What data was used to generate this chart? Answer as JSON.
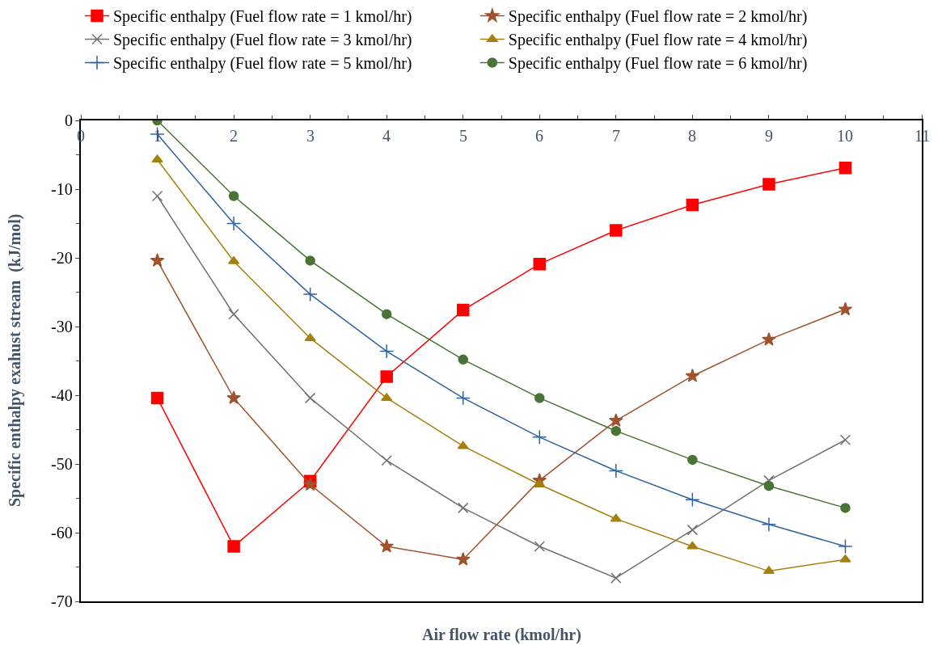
{
  "chart_data": {
    "type": "line",
    "xlabel": "Air flow rate (kmol/hr)",
    "ylabel": "Specific enthalpy exahust stream  (kJ/mol)",
    "x": [
      1,
      2,
      3,
      4,
      5,
      6,
      7,
      8,
      9,
      10
    ],
    "xlim": [
      0,
      11
    ],
    "xticks": [
      0,
      1,
      2,
      3,
      4,
      5,
      6,
      7,
      8,
      9,
      10,
      11
    ],
    "ylim": [
      -70,
      0
    ],
    "yticks": [
      0,
      -10,
      -20,
      -30,
      -40,
      -50,
      -60,
      -70
    ],
    "legend": "top",
    "line_style": "solid",
    "series": [
      {
        "name": "Specific enthalpy (Fuel flow rate = 1 kmol/hr)",
        "color": "#ff0000",
        "marker": "square",
        "values": [
          -40.4,
          -62.0,
          -52.5,
          -37.3,
          -27.6,
          -20.9,
          -16.0,
          -12.3,
          -9.3,
          -6.9
        ]
      },
      {
        "name": "Specific enthalpy (Fuel flow rate = 2 kmol/hr)",
        "color": "#a0522d",
        "marker": "star",
        "values": [
          -20.4,
          -40.4,
          -53.0,
          -62.0,
          -63.9,
          -52.4,
          -43.7,
          -37.2,
          -31.9,
          -27.5
        ]
      },
      {
        "name": "Specific enthalpy (Fuel flow rate = 3 kmol/hr)",
        "color": "#707070",
        "marker": "x",
        "values": [
          -11.0,
          -28.2,
          -40.4,
          -49.5,
          -56.4,
          -62.0,
          -66.6,
          -59.6,
          -52.4,
          -46.5
        ]
      },
      {
        "name": "Specific enthalpy (Fuel flow rate = 4 kmol/hr)",
        "color": "#a6800f",
        "marker": "triangle",
        "values": [
          -5.7,
          -20.5,
          -31.7,
          -40.4,
          -47.4,
          -53.0,
          -58.0,
          -62.0,
          -65.6,
          -63.9
        ]
      },
      {
        "name": "Specific enthalpy (Fuel flow rate = 5 kmol/hr)",
        "color": "#2f63a0",
        "marker": "cross",
        "values": [
          -2.0,
          -15.0,
          -25.3,
          -33.6,
          -40.4,
          -46.1,
          -51.0,
          -55.2,
          -58.8,
          -62.0
        ]
      },
      {
        "name": "Specific enthalpy (Fuel flow rate = 6 kmol/hr)",
        "color": "#4a7336",
        "marker": "circle",
        "values": [
          0,
          -11.0,
          -20.4,
          -28.2,
          -34.8,
          -40.4,
          -45.2,
          -49.4,
          -53.2,
          -56.4
        ]
      }
    ]
  }
}
